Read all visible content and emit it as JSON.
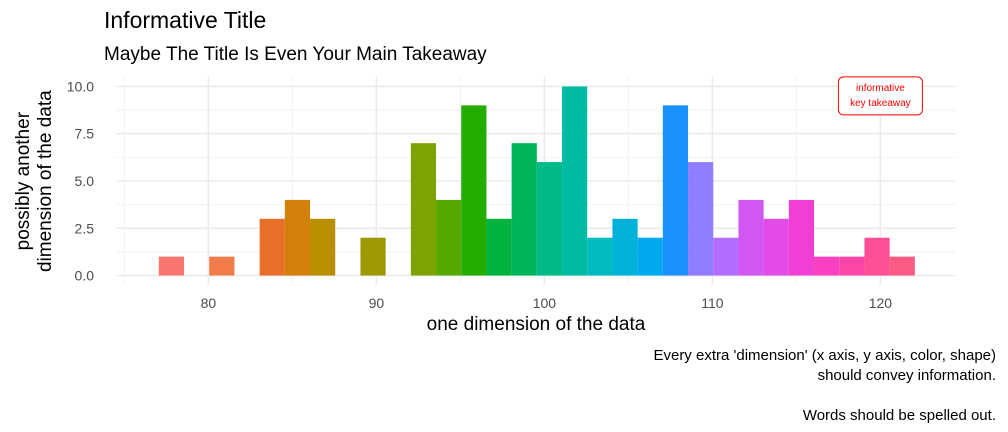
{
  "chart_data": {
    "type": "bar",
    "title": "Informative Title",
    "subtitle": "Maybe The Title Is Even Your Main Takeaway",
    "xlabel": "one dimension of the data",
    "ylabel_lines": [
      "possibly another",
      "dimension of the data"
    ],
    "caption_lines": [
      "Every extra 'dimension' (x axis, y axis, color, shape)",
      "should convey information.",
      "",
      "Words should be spelled out."
    ],
    "xlim": [
      74.5,
      124.5
    ],
    "ylim": [
      -0.5,
      10.5
    ],
    "x_ticks": [
      80,
      90,
      100,
      110,
      120
    ],
    "x_tick_labels": [
      "80",
      "90",
      "100",
      "110",
      "120"
    ],
    "y_ticks": [
      0,
      2.5,
      5,
      7.5,
      10
    ],
    "y_tick_labels": [
      "0.0",
      "2.5",
      "5.0",
      "7.5",
      "10.0"
    ],
    "grid": true,
    "bin_width": 1.5,
    "bins": [
      {
        "x": 77.8,
        "count": 1,
        "color": "#f8766d"
      },
      {
        "x": 80.8,
        "count": 1,
        "color": "#f17c4a"
      },
      {
        "x": 83.8,
        "count": 3,
        "color": "#e76f2a"
      },
      {
        "x": 85.3,
        "count": 4,
        "color": "#d3800b"
      },
      {
        "x": 86.8,
        "count": 3,
        "color": "#b78f00"
      },
      {
        "x": 89.8,
        "count": 2,
        "color": "#9c9a00"
      },
      {
        "x": 92.8,
        "count": 7,
        "color": "#7ca400"
      },
      {
        "x": 94.3,
        "count": 4,
        "color": "#55a800"
      },
      {
        "x": 95.8,
        "count": 9,
        "color": "#22ad00"
      },
      {
        "x": 97.3,
        "count": 3,
        "color": "#00b33f"
      },
      {
        "x": 98.8,
        "count": 7,
        "color": "#00b55c"
      },
      {
        "x": 100.3,
        "count": 6,
        "color": "#00ba8a"
      },
      {
        "x": 101.8,
        "count": 10,
        "color": "#00bba4"
      },
      {
        "x": 103.3,
        "count": 2,
        "color": "#00bcc0"
      },
      {
        "x": 104.8,
        "count": 3,
        "color": "#00b2d8"
      },
      {
        "x": 106.3,
        "count": 2,
        "color": "#00a9f0"
      },
      {
        "x": 107.8,
        "count": 9,
        "color": "#1b90ff"
      },
      {
        "x": 109.3,
        "count": 6,
        "color": "#8f7dff"
      },
      {
        "x": 110.8,
        "count": 2,
        "color": "#b26dff"
      },
      {
        "x": 112.3,
        "count": 4,
        "color": "#d157f5"
      },
      {
        "x": 113.8,
        "count": 3,
        "color": "#e24be7"
      },
      {
        "x": 115.3,
        "count": 4,
        "color": "#f040d3"
      },
      {
        "x": 116.8,
        "count": 1,
        "color": "#fa40c0"
      },
      {
        "x": 118.3,
        "count": 1,
        "color": "#fb46a8"
      },
      {
        "x": 119.8,
        "count": 2,
        "color": "#fd4f95"
      },
      {
        "x": 121.3,
        "count": 1,
        "color": "#f95b82"
      }
    ],
    "annotation": {
      "lines": [
        "informative",
        "key takeaway"
      ],
      "x": 120,
      "y": 9.5,
      "color": "#ff0000"
    }
  }
}
